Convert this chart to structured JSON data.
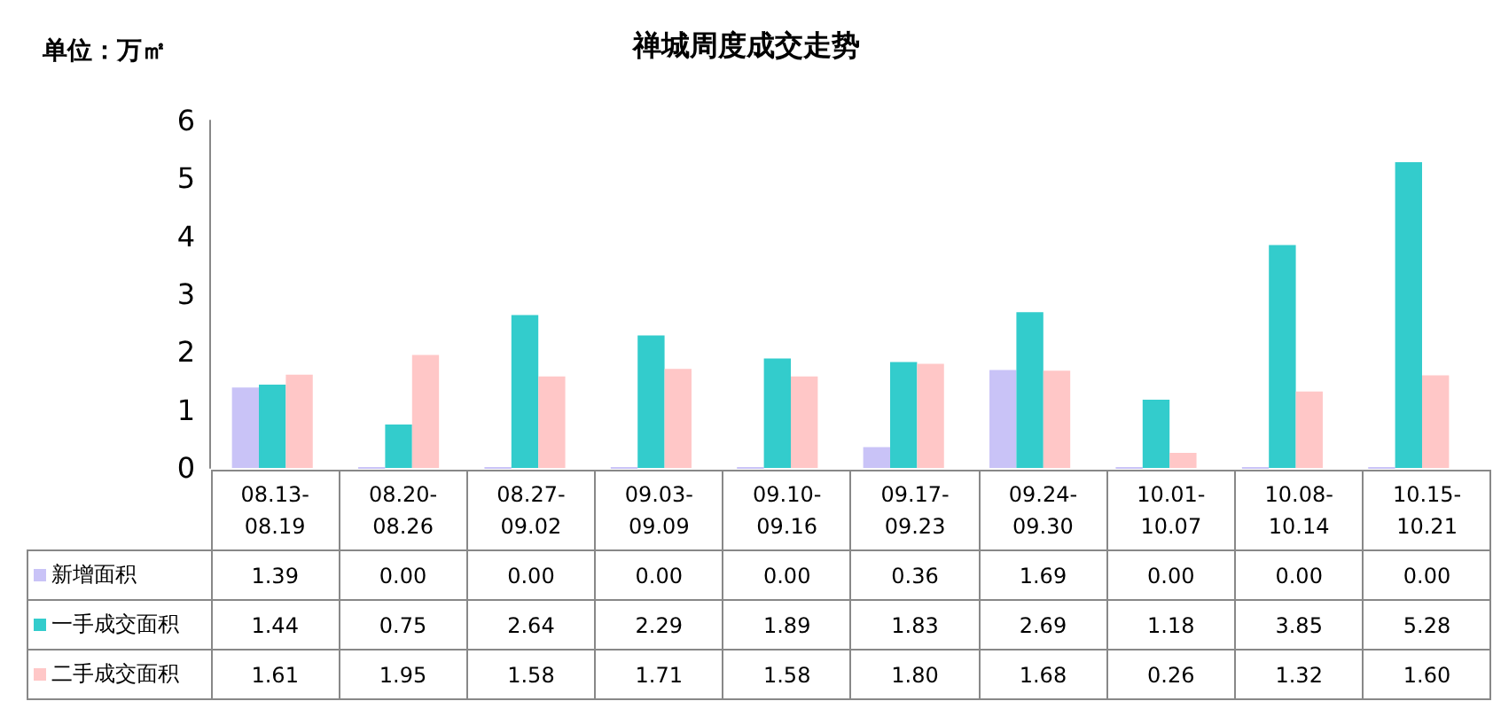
{
  "chart_data": {
    "type": "bar",
    "title": "禅城周度成交走势",
    "ylabel": "单位：万㎡",
    "categories": [
      "08.13-08.19",
      "08.20-08.26",
      "08.27-09.02",
      "09.03-09.09",
      "09.10-09.16",
      "09.17-09.23",
      "09.24-09.30",
      "10.01-10.07",
      "10.08-10.14",
      "10.15-10.21"
    ],
    "series": [
      {
        "name": "新增面积",
        "color": "#c9c3f7",
        "values": [
          1.39,
          0,
          0,
          0,
          0,
          0.36,
          1.69,
          0,
          0,
          0
        ],
        "value_labels": [
          "1.39",
          "0.00",
          "0.00",
          "0.00",
          "0.00",
          "0.36",
          "1.69",
          "0.00",
          "0.00",
          "0.00"
        ]
      },
      {
        "name": "一手成交面积",
        "color": "#33cccc",
        "values": [
          1.44,
          0.75,
          2.64,
          2.29,
          1.89,
          1.83,
          2.69,
          1.18,
          3.85,
          5.28
        ],
        "value_labels": [
          "1.44",
          "0.75",
          "2.64",
          "2.29",
          "1.89",
          "1.83",
          "2.69",
          "1.18",
          "3.85",
          "5.28"
        ]
      },
      {
        "name": "二手成交面积",
        "color": "#ffc7c7",
        "values": [
          1.61,
          1.95,
          1.58,
          1.71,
          1.58,
          1.8,
          1.68,
          0.26,
          1.32,
          1.6
        ],
        "value_labels": [
          "1.61",
          "1.95",
          "1.58",
          "1.71",
          "1.58",
          "1.80",
          "1.68",
          "0.26",
          "1.32",
          "1.60"
        ]
      }
    ],
    "ylim": [
      0,
      6
    ],
    "yticks": [
      0,
      1,
      2,
      3,
      4,
      5,
      6
    ],
    "legend": "bottom"
  }
}
